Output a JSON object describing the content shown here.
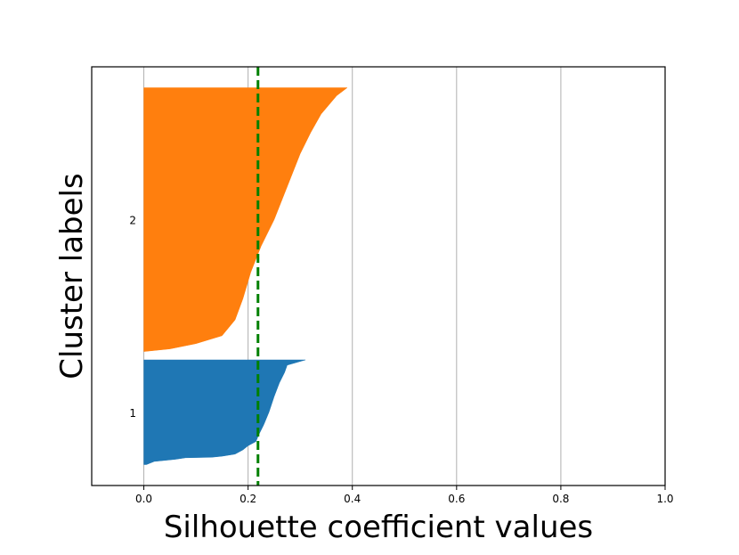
{
  "chart_data": {
    "type": "area",
    "title": "",
    "xlabel": "Silhouette coefficient values",
    "ylabel": "Cluster labels",
    "xlim": [
      -0.1,
      1.0
    ],
    "ylim": [
      0,
      100
    ],
    "x_ticks": [
      0.0,
      0.2,
      0.4,
      0.6,
      0.8,
      1.0
    ],
    "x_tick_labels": [
      "0.0",
      "0.2",
      "0.4",
      "0.6",
      "0.8",
      "1.0"
    ],
    "y_tick_labels": [
      "1",
      "2"
    ],
    "grid": "vertical",
    "average_silhouette": 0.219,
    "average_line_color": "#008000",
    "clusters": [
      {
        "label": "1",
        "color": "#1f77b4",
        "y_start": 5,
        "y_end": 30,
        "profile": [
          [
            0.005,
            0.0
          ],
          [
            0.02,
            0.1
          ],
          [
            0.03,
            0.2
          ],
          [
            0.05,
            0.3
          ],
          [
            0.07,
            0.5
          ],
          [
            0.085,
            0.6
          ],
          [
            0.12,
            0.7
          ],
          [
            0.17,
            0.8
          ],
          [
            0.2,
            0.9
          ],
          [
            0.2,
            0.95
          ],
          [
            0.2,
            1.0
          ]
        ],
        "profile_top_desc": [
          [
            0.31,
            0.0
          ],
          [
            0.275,
            0.05
          ],
          [
            0.27,
            0.12
          ],
          [
            0.26,
            0.22
          ],
          [
            0.25,
            0.35
          ],
          [
            0.24,
            0.5
          ],
          [
            0.23,
            0.62
          ],
          [
            0.22,
            0.72
          ],
          [
            0.215,
            0.78
          ],
          [
            0.2,
            0.82
          ],
          [
            0.19,
            0.86
          ],
          [
            0.175,
            0.9
          ],
          [
            0.15,
            0.92
          ],
          [
            0.13,
            0.93
          ],
          [
            0.08,
            0.935
          ],
          [
            0.06,
            0.95
          ],
          [
            0.02,
            0.97
          ],
          [
            0.005,
            1.0
          ]
        ]
      },
      {
        "label": "2",
        "color": "#ff7f0e",
        "y_start": 32,
        "y_end": 95,
        "profile_top_desc": [
          [
            0.39,
            0.0
          ],
          [
            0.37,
            0.03
          ],
          [
            0.34,
            0.1
          ],
          [
            0.32,
            0.17
          ],
          [
            0.3,
            0.25
          ],
          [
            0.28,
            0.35
          ],
          [
            0.25,
            0.5
          ],
          [
            0.225,
            0.6
          ],
          [
            0.205,
            0.7
          ],
          [
            0.19,
            0.8
          ],
          [
            0.175,
            0.88
          ],
          [
            0.15,
            0.94
          ],
          [
            0.1,
            0.97
          ],
          [
            0.05,
            0.99
          ],
          [
            0.0,
            1.0
          ]
        ]
      }
    ]
  }
}
